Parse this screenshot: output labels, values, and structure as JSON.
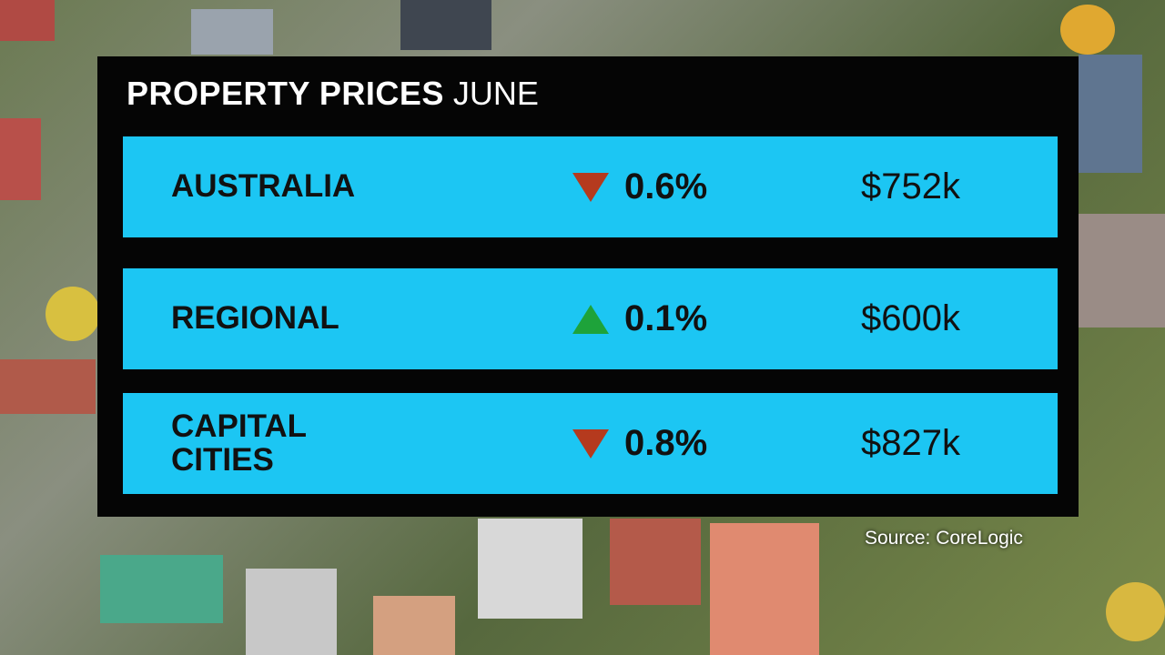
{
  "header": {
    "title": "PROPERTY PRICES",
    "subtitle": "JUNE"
  },
  "table": {
    "rows": [
      {
        "region": "AUSTRALIA",
        "direction": "down",
        "change": "0.6%",
        "price": "$752k"
      },
      {
        "region": "REGIONAL",
        "direction": "up",
        "change": "0.1%",
        "price": "$600k"
      },
      {
        "region": "CAPITAL CITIES",
        "direction": "down",
        "change": "0.8%",
        "price": "$827k"
      }
    ]
  },
  "source": "Source: CoreLogic"
}
